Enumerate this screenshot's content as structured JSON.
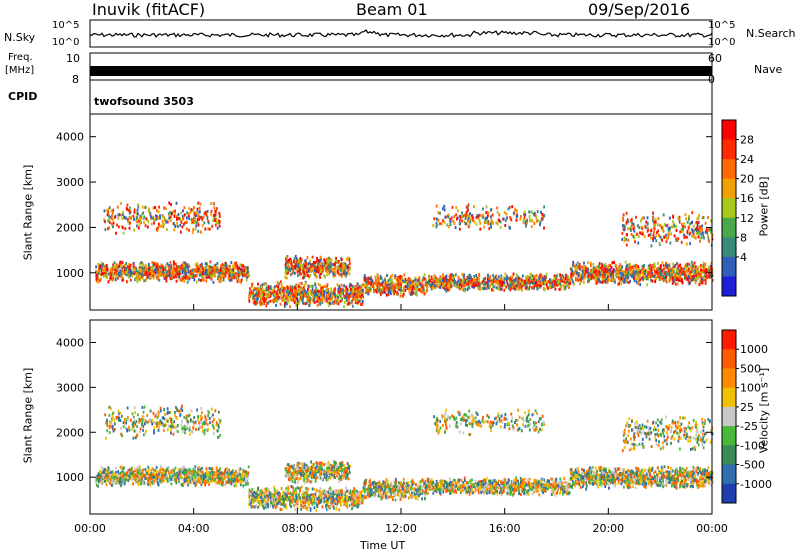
{
  "header": {
    "station": "Inuvik (fitACF)",
    "beam": "Beam 01",
    "date": "09/Sep/2016"
  },
  "top_panels": {
    "nsky_label": "N.Sky",
    "nsky_ticks": [
      "10^5",
      "10^0"
    ],
    "nsearch_label": "N.Search",
    "nsearch_ticks": [
      "10^5",
      "10^0"
    ],
    "freq_label": "Freq.",
    "freq_unit": "[MHz]",
    "freq_ticks": [
      "10",
      "8"
    ],
    "nave_label": "Nave",
    "nave_ticks": [
      "60",
      "0"
    ],
    "cpid_label": "CPID",
    "cpid_value": "twofsound 3503"
  },
  "chart_data": [
    {
      "type": "heatmap",
      "title": "",
      "xlabel": "",
      "ylabel": "Slant Range [km]",
      "x_ticks": [
        "00:00",
        "04:00",
        "08:00",
        "12:00",
        "16:00",
        "20:00",
        "00:00"
      ],
      "xlim_hours": [
        0,
        24
      ],
      "y_ticks": [
        1000,
        2000,
        3000,
        4000
      ],
      "ylim": [
        180,
        4500
      ],
      "colorbar": {
        "label": "Power [dB]",
        "ticks": [
          4,
          8,
          12,
          16,
          20,
          24,
          28
        ],
        "range": [
          0,
          30
        ],
        "colors": [
          "#1f1fd8",
          "#2f5fb8",
          "#3a8a7a",
          "#4aa84a",
          "#a8c81a",
          "#f0a000",
          "#ff6a00",
          "#ff2a00",
          "#ff0000"
        ]
      }
    },
    {
      "type": "heatmap",
      "title": "",
      "xlabel": "Time UT",
      "ylabel": "Slant Range [km]",
      "x_ticks": [
        "00:00",
        "04:00",
        "08:00",
        "12:00",
        "16:00",
        "20:00",
        "00:00"
      ],
      "xlim_hours": [
        0,
        24
      ],
      "y_ticks": [
        1000,
        2000,
        3000,
        4000
      ],
      "ylim": [
        180,
        4500
      ],
      "colorbar": {
        "label": "Velocity [m s⁻¹]",
        "ticks": [
          "1000",
          "500",
          "100",
          "25",
          "-25",
          "-100",
          "-500",
          "-1000"
        ],
        "colors": [
          "#1f3fb0",
          "#2f6fb0",
          "#3a8a5a",
          "#4ab83a",
          "#c8c8c8",
          "#f0c000",
          "#ff8a00",
          "#ff5a00",
          "#ff1a00"
        ]
      }
    }
  ]
}
